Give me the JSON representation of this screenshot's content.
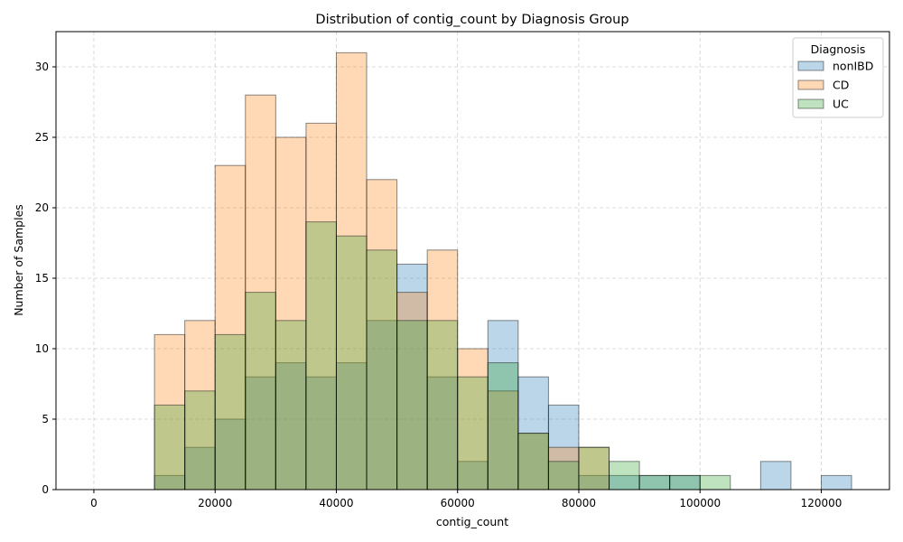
{
  "chart_data": {
    "type": "bar",
    "title": "Distribution of contig_count by Diagnosis Group",
    "xlabel": "contig_count",
    "ylabel": "Number of Samples",
    "xlim": [
      -6250,
      131250
    ],
    "ylim": [
      0,
      32.5
    ],
    "x_ticks": [
      0,
      20000,
      40000,
      60000,
      80000,
      100000,
      120000
    ],
    "y_ticks": [
      0,
      5,
      10,
      15,
      20,
      25,
      30
    ],
    "grid": true,
    "bin_edges": [
      0,
      5000,
      10000,
      15000,
      20000,
      25000,
      30000,
      35000,
      40000,
      45000,
      50000,
      55000,
      60000,
      65000,
      70000,
      75000,
      80000,
      85000,
      90000,
      95000,
      100000,
      105000,
      110000,
      115000,
      120000,
      125000
    ],
    "legend": {
      "title": "Diagnosis",
      "position": "top-right"
    },
    "series": [
      {
        "name": "nonIBD",
        "color": "#1f77b4",
        "values": [
          0,
          0,
          1,
          3,
          5,
          8,
          9,
          8,
          9,
          12,
          16,
          8,
          2,
          12,
          8,
          6,
          1,
          1,
          1,
          1,
          0,
          0,
          2,
          0,
          1
        ]
      },
      {
        "name": "CD",
        "color": "#ff7f0e",
        "values": [
          0,
          0,
          11,
          12,
          23,
          28,
          25,
          26,
          31,
          22,
          14,
          17,
          10,
          7,
          4,
          3,
          3,
          0,
          0,
          0,
          0,
          0,
          0,
          0,
          0
        ]
      },
      {
        "name": "UC",
        "color": "#2ca02c",
        "values": [
          0,
          0,
          6,
          7,
          11,
          14,
          12,
          19,
          18,
          17,
          12,
          12,
          8,
          9,
          4,
          2,
          3,
          2,
          1,
          1,
          1,
          0,
          0,
          0,
          0
        ]
      }
    ]
  }
}
